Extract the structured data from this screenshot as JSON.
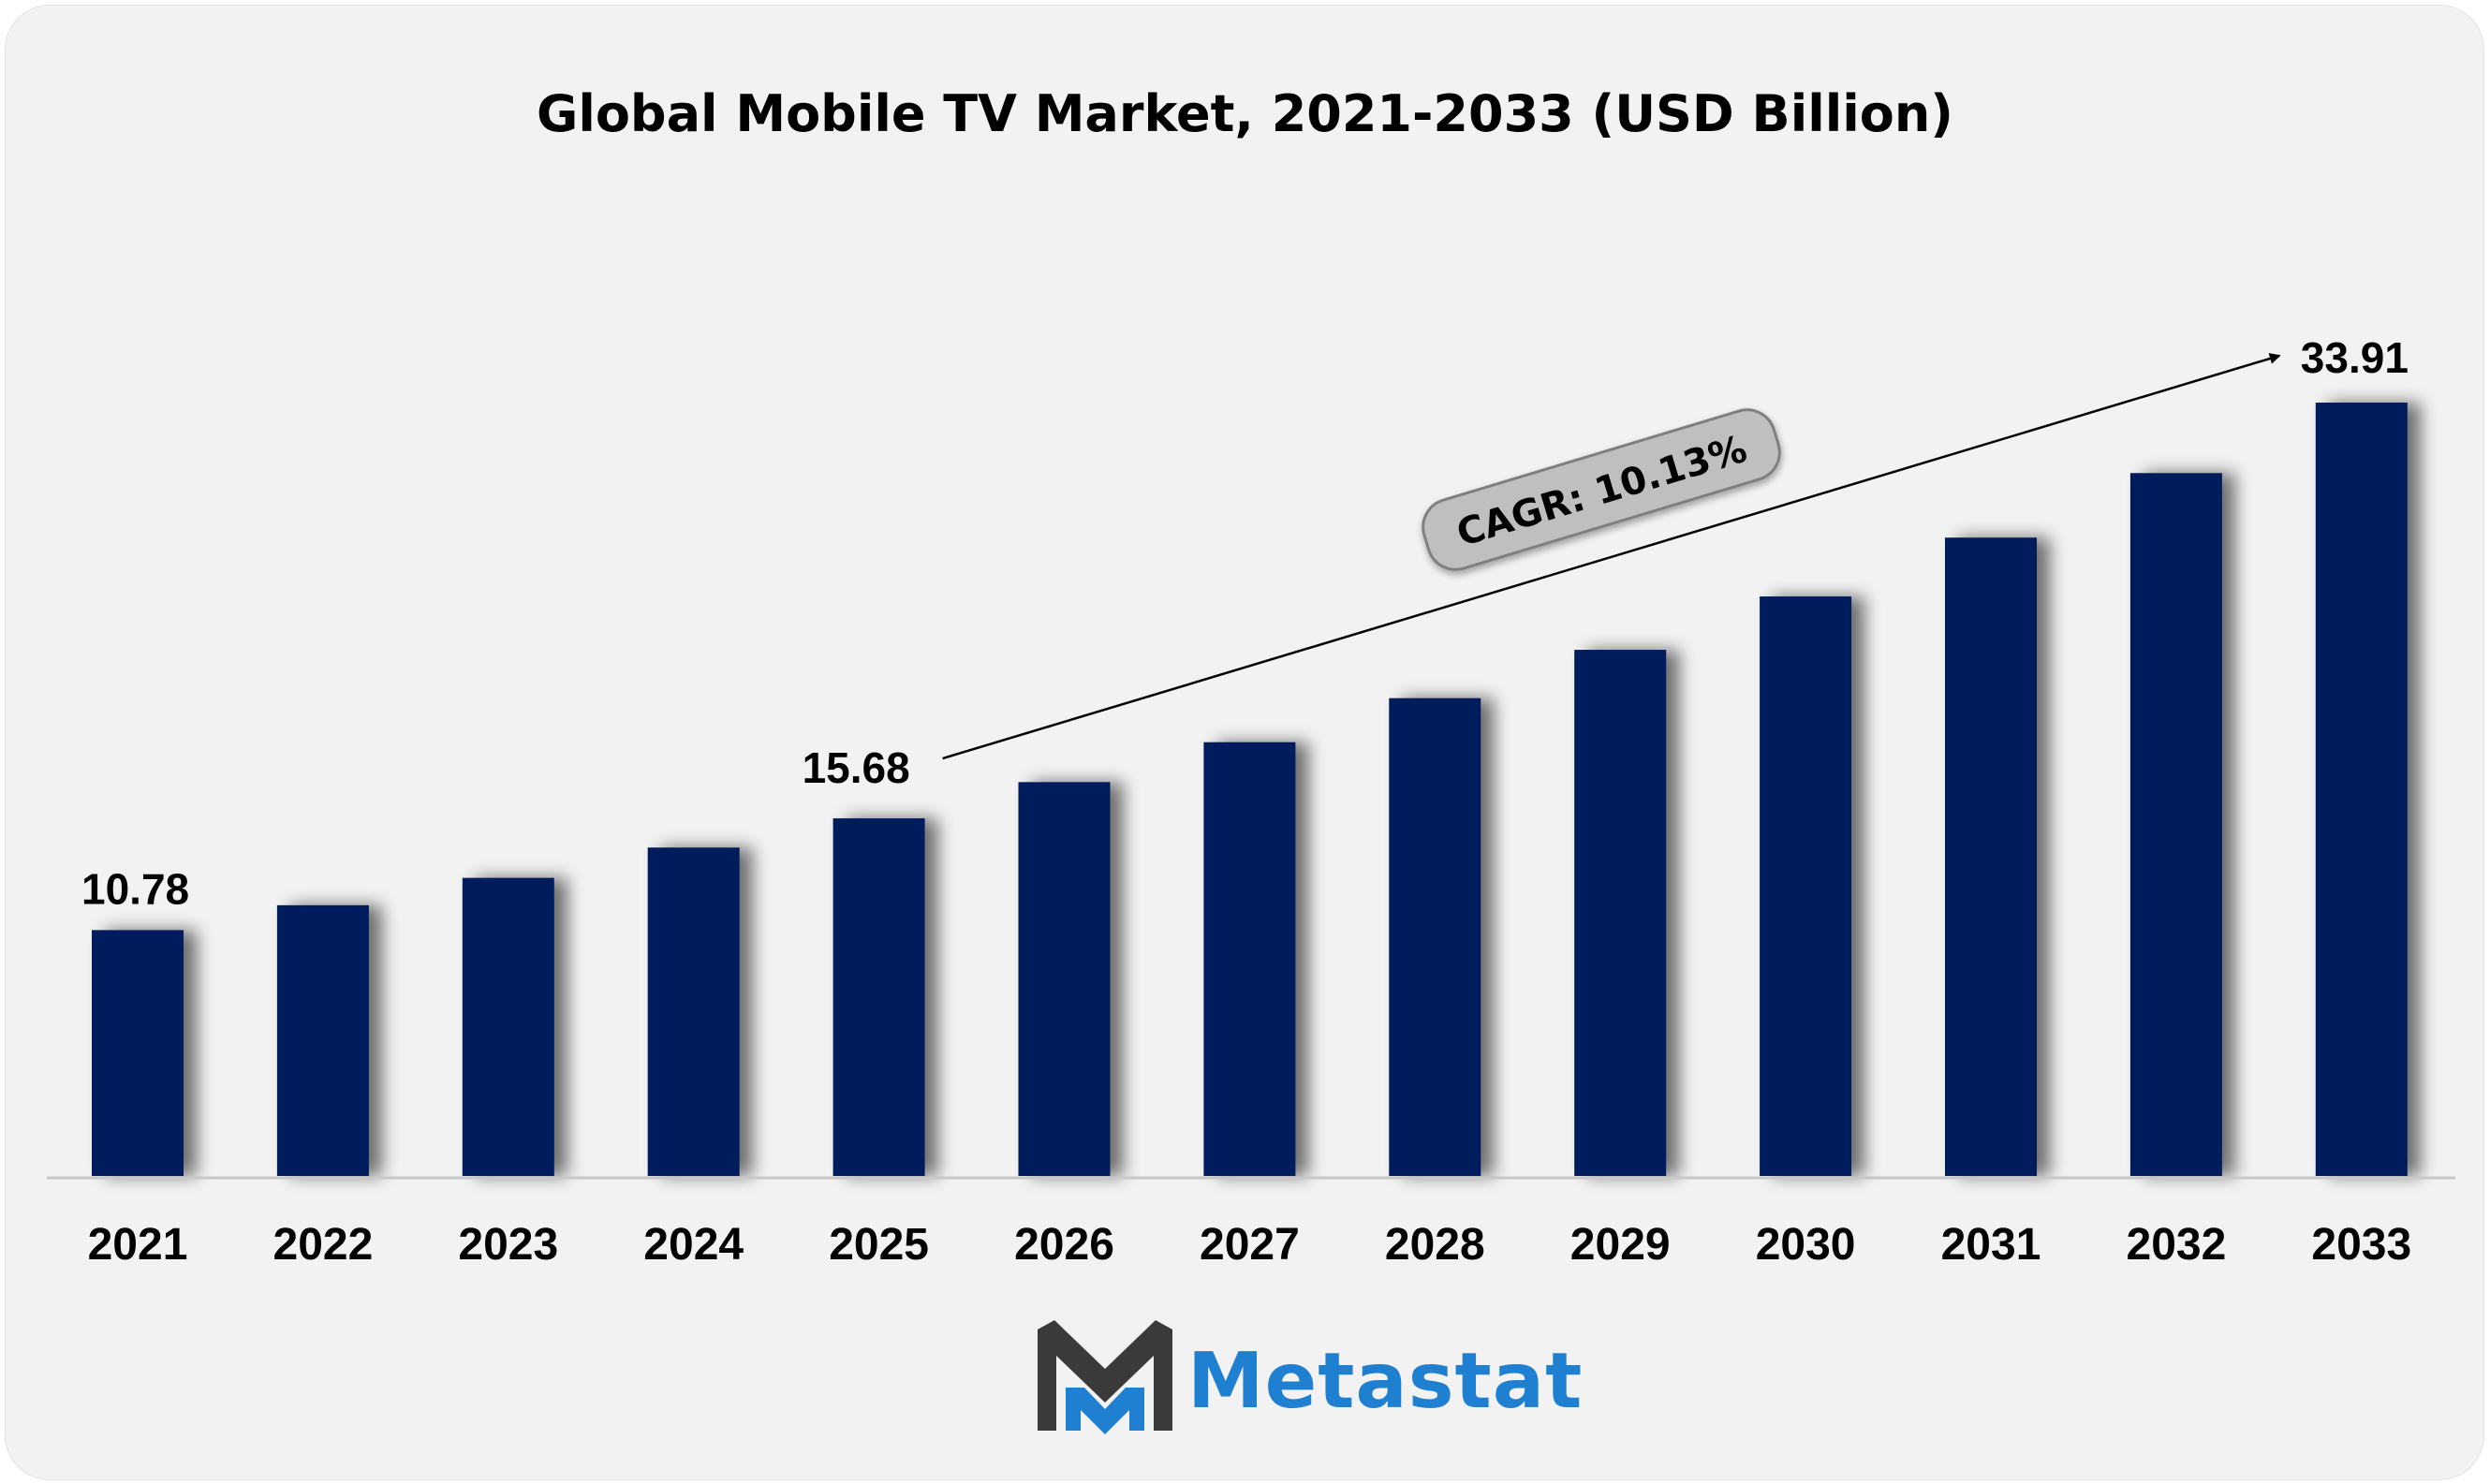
{
  "chart_data": {
    "type": "bar",
    "title": "Global Mobile TV Market, 2021-2033 (USD Billion)",
    "categories": [
      "2021",
      "2022",
      "2023",
      "2024",
      "2025",
      "2026",
      "2027",
      "2028",
      "2029",
      "2030",
      "2031",
      "2032",
      "2033"
    ],
    "values": [
      10.78,
      11.87,
      13.07,
      14.4,
      15.68,
      17.27,
      19.02,
      20.95,
      23.07,
      25.41,
      27.99,
      30.82,
      33.91
    ],
    "value_labels": [
      {
        "index": 0,
        "text": "10.78"
      },
      {
        "index": 4,
        "text": "15.68"
      },
      {
        "index": 12,
        "text": "33.91"
      }
    ],
    "annotation": {
      "text": "CAGR: 10.13%",
      "from_index": 4,
      "to_index": 12
    },
    "xlabel": "",
    "ylabel": "",
    "ylim": [
      0,
      35.7
    ],
    "grid": false,
    "legend": "none",
    "bar_color": "#021f5c"
  },
  "brand": {
    "name": "Metastat",
    "colors": {
      "dark": "#3a3a3a",
      "blue": "#1f7fd0"
    }
  }
}
